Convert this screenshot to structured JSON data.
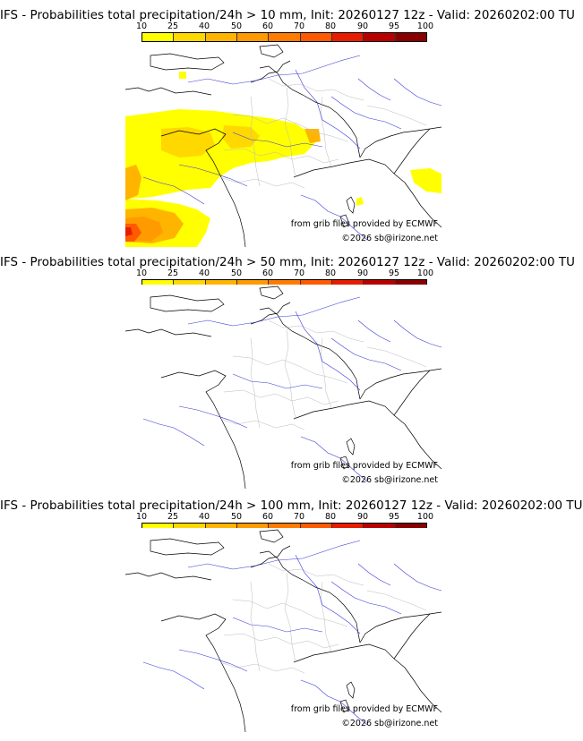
{
  "scale": {
    "ticks": [
      "10",
      "25",
      "40",
      "50",
      "60",
      "70",
      "80",
      "90",
      "95",
      "100"
    ],
    "colors": [
      "#ffff00",
      "#ffd800",
      "#ffb400",
      "#ff9a00",
      "#ff7c00",
      "#ff5a00",
      "#e61d00",
      "#b80000",
      "#880000",
      "#5a0000"
    ]
  },
  "panels": [
    {
      "title": "IFS - Probabilities total precipitation/24h > 10 mm, Init: 20260127 12z - Valid: 20260202:00 TU",
      "credit_source": "from grib files provided by ECMWF",
      "credit_copyright": "©2026 sb@irizone.net"
    },
    {
      "title": "IFS - Probabilities total precipitation/24h > 50 mm, Init: 20260127 12z - Valid: 20260202:00 TU",
      "credit_source": "from grib files provided by ECMWF",
      "credit_copyright": "©2026 sb@irizone.net"
    },
    {
      "title": "IFS - Probabilities total precipitation/24h > 100 mm, Init: 20260127 12z - Valid: 20260202:00 TU",
      "credit_source": "from grib files provided by ECMWF",
      "credit_copyright": "©2026 sb@irizone.net"
    }
  ]
}
